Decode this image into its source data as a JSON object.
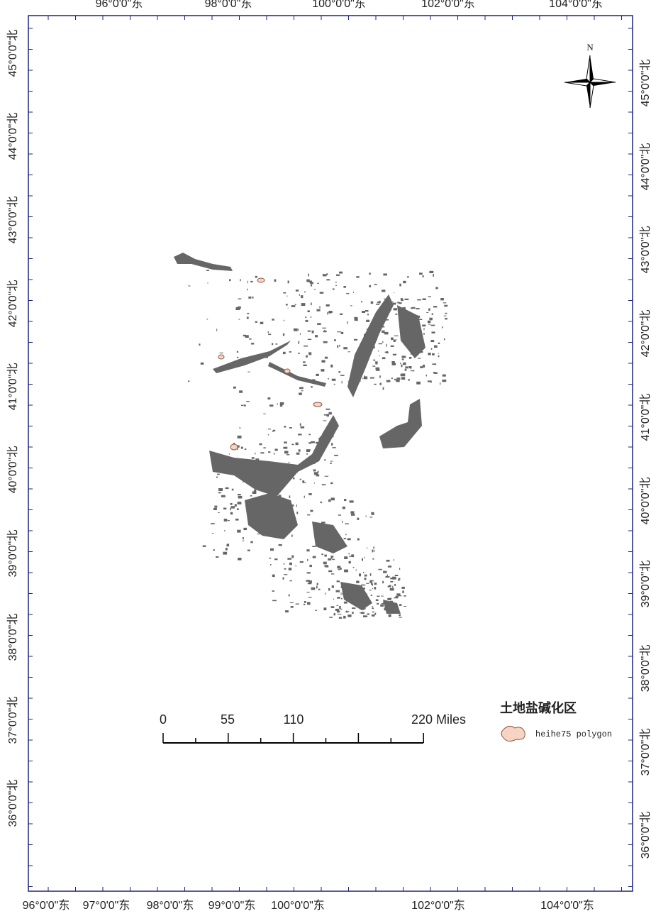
{
  "map": {
    "top_labels": [
      "96°0'0\"东",
      "98°0'0\"东",
      "100°0'0\"东",
      "102°0'0\"东",
      "104°0'0\"东"
    ],
    "bottom_labels": [
      "96°0'0\"东",
      "97°0'0\"东",
      "98°0'0\"东",
      "99°0'0\"东",
      "100°0'0\"东",
      "102°0'0\"东",
      "104°0'0\"东"
    ],
    "left_labels": [
      "45°0'0\"北",
      "44°0'0\"北",
      "43°0'0\"北",
      "42°0'0\"北",
      "41°0'0\"北",
      "40°0'0\"北",
      "39°0'0\"北",
      "38°0'0\"北",
      "37°0'0\"北",
      "36°0'0\"北"
    ],
    "right_labels": [
      "45°0'0\"北",
      "44°0'0\"北",
      "43°0'0\"北",
      "42°0'0\"北",
      "41°0'0\"北",
      "40°0'0\"北",
      "39°0'0\"北",
      "38°0'0\"北",
      "37°0'0\"北",
      "36°0'0\"北"
    ],
    "north": "N",
    "scale_bar": {
      "labels": [
        "0",
        "55",
        "110",
        "220 Miles"
      ]
    },
    "legend": {
      "title": "土地盐碱化区",
      "items": [
        "heihe75 polygon"
      ]
    }
  }
}
